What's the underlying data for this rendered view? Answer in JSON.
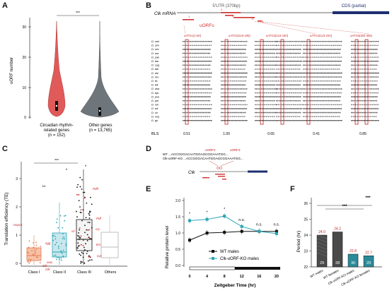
{
  "panels": {
    "A": {
      "letter": "A",
      "ylabel": "uORF number",
      "yticks": [
        "0",
        "10",
        "20",
        "30"
      ],
      "groups": [
        {
          "label_l1": "Circadian rhythm-",
          "label_l2": "related genes",
          "label_l3": "(n = 152)",
          "color": "#e05a5a"
        },
        {
          "label_l1": "Other genes",
          "label_l2": "(n = 13,765)",
          "label_l3": "",
          "color": "#6f767b"
        }
      ],
      "sig": "***"
    },
    "B": {
      "letter": "B",
      "utr_label": "5'UTR (370bp)",
      "cds_label": "CDS (partial)",
      "gene_label": "Clk mRNA",
      "uorf_numbers": [
        "1",
        "2",
        "3",
        "4",
        "5"
      ],
      "uorf_legend": "uORFs",
      "region_labels": [
        "uATG1(1-60)",
        "uATG2(116-185)",
        "uATG3(123-150)",
        "uATG4(123-234)",
        "uATG5(304-306)"
      ],
      "species": [
        "D. mel",
        "D. sim",
        "D. sec",
        "D. ere",
        "D. yak",
        "D. bia",
        "D. sug",
        "D. tak",
        "D. ele",
        "D. rho",
        "D. fic",
        "D. kik",
        "D. ana",
        "D. bip",
        "D. pse",
        "D. per",
        "D. mir",
        "D. wil",
        "D. vir",
        "D. moj",
        "D. gri"
      ],
      "bls_label": "BLS",
      "bls_values": [
        "0.51",
        "1.00",
        "0.65",
        "0.41",
        "0.85"
      ]
    },
    "C": {
      "letter": "C",
      "ylabel": "Translation efficiency (TE)",
      "yticks": [
        "0",
        "1",
        "2",
        "3"
      ],
      "categories": [
        "Class I",
        "Class II",
        "Class III",
        "Others"
      ],
      "colors": [
        "#e97b52",
        "#2ba5b6",
        "#111111",
        "#b8b8b8"
      ],
      "sig_main": "***",
      "sig_classI": "**",
      "sig_classII": "*",
      "sig_classIII": "*",
      "gene_labels": [
        "Hspc1",
        "Clk",
        "Clk",
        "cwo",
        "vri",
        "sgg",
        "cry",
        "Pdf",
        "tim",
        "Pdfr",
        "cyc"
      ]
    },
    "D": {
      "letter": "D",
      "seq1": "WT      ...ACCGGGACAATGGAGCGGAAATGG...",
      "seq2": "Clk-uORF-KO ...ACCGGGACAATGGAGCGGAAATGG...",
      "label_uorf2": "uORF2",
      "label_uorf3": "uORF3",
      "gene_label": "Clk"
    },
    "E": {
      "letter": "E",
      "ylabel": "Relative protein level",
      "xlabel": "Zeitgeber Time (hr)",
      "yticks": [
        "0.0",
        "0.5",
        "1.0",
        "1.5",
        "2.0"
      ],
      "series": [
        {
          "name": "WT males",
          "color": "#111111",
          "values": [
            0.78,
            1.0,
            1.02,
            1.05,
            1.05,
            1.05
          ]
        },
        {
          "name": "Clk-uORF-KO males",
          "color": "#2ba5b6",
          "values": [
            1.38,
            1.42,
            1.52,
            1.2,
            1.05,
            0.98
          ]
        }
      ],
      "x": [
        0,
        4,
        8,
        12,
        16,
        20
      ],
      "sig": [
        "*",
        "*",
        "*",
        "n.s.",
        "n.s.",
        "n.s."
      ]
    },
    "F": {
      "letter": "F",
      "ylabel": "Period (hr)",
      "yticks": [
        "22",
        "23",
        "24",
        "25",
        "26"
      ],
      "bars": [
        {
          "label": "WT males",
          "value": 24.0,
          "n": "29",
          "value_text": "24.0",
          "color": "#4a4a4a"
        },
        {
          "label": "WT females",
          "value": 24.2,
          "n": "28",
          "value_text": "24.2",
          "color": "#4a4a4a"
        },
        {
          "label": "Clk-uORF-KO males",
          "value": 22.8,
          "n": "30",
          "value_text": "22.8",
          "color": "#2b8a99"
        },
        {
          "label": "Clk-uORF-KO females",
          "value": 22.7,
          "n": "29",
          "value_text": "22.7",
          "color": "#2b8a99"
        }
      ],
      "sig": [
        "***",
        "***"
      ]
    }
  }
}
